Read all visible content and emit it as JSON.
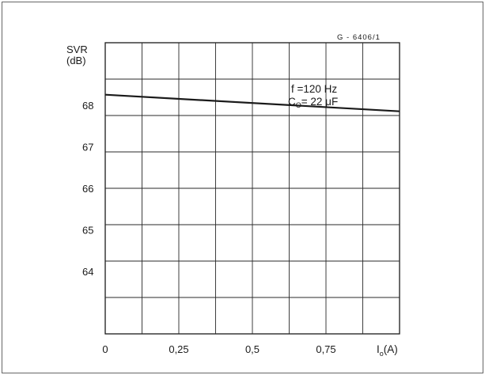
{
  "chart_data": {
    "type": "line",
    "code": "G - 6406/1",
    "ylabel_line1": "SVR",
    "ylabel_line2": "(dB)",
    "xlabel_main": "I",
    "xlabel_sub": "o",
    "xlabel_unit": "(A)",
    "xlim": [
      0,
      1.0
    ],
    "ylim": [
      62.5,
      69.5
    ],
    "x_ticks": [
      {
        "value": 0,
        "label": "0"
      },
      {
        "value": 0.25,
        "label": "0,25"
      },
      {
        "value": 0.5,
        "label": "0,5"
      },
      {
        "value": 0.75,
        "label": "0,75"
      }
    ],
    "y_ticks": [
      {
        "value": 68,
        "label": "68"
      },
      {
        "value": 67,
        "label": "67"
      },
      {
        "value": 66,
        "label": "66"
      },
      {
        "value": 65,
        "label": "65"
      },
      {
        "value": 64,
        "label": "64"
      }
    ],
    "grid": true,
    "annotation_line1": "f =120 Hz",
    "annotation_line2_main": "C",
    "annotation_line2_sub": "O",
    "annotation_line2_rest": "= 22 μF",
    "series": [
      {
        "x": [
          0,
          1.0
        ],
        "y": [
          68.25,
          67.85
        ],
        "color": "#1a1a1a"
      }
    ]
  }
}
